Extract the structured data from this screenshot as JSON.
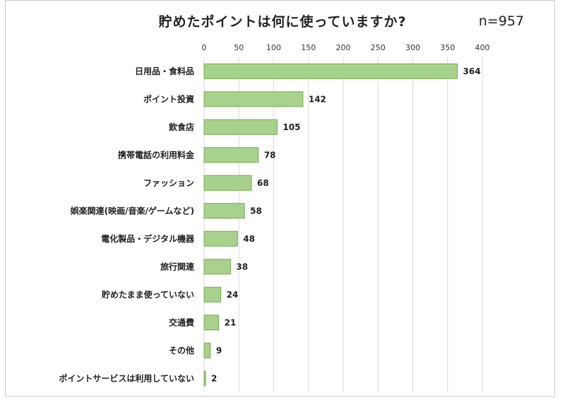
{
  "chart_data": {
    "type": "bar",
    "orientation": "horizontal",
    "title": "貯めたポイントは何に使っていますか?",
    "sample_size": "n=957",
    "xlim": [
      0,
      400
    ],
    "xticks": [
      "0",
      "50",
      "100",
      "150",
      "200",
      "250",
      "300",
      "350",
      "400"
    ],
    "grid": true,
    "categories": [
      "日用品・食料品",
      "ポイント投資",
      "飲食店",
      "携帯電話の利用料金",
      "ファッション",
      "娯楽関連(映画/音楽/ゲームなど)",
      "電化製品・デジタル機器",
      "旅行関連",
      "貯めたまま使っていない",
      "交通費",
      "その他",
      "ポイントサービスは利用していない"
    ],
    "values": [
      364,
      142,
      105,
      78,
      68,
      58,
      48,
      38,
      24,
      21,
      9,
      2
    ],
    "bar_fill": "#a9d18e",
    "bar_stroke": "#70ad47"
  }
}
